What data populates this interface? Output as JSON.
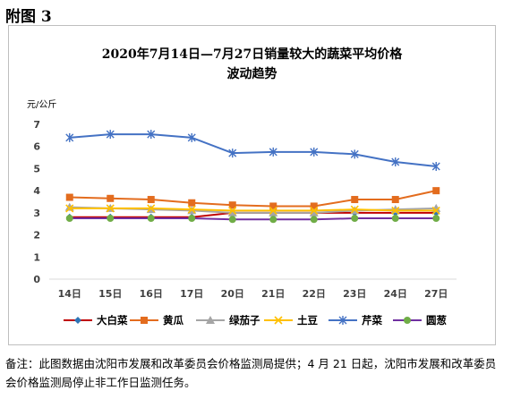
{
  "heading": "附图 3",
  "note": "备注：此图数据由沈阳市发展和改革委员会价格监测局提供；4 月 21 日起，沈阳市发展和改革委员会价格监测局停止非工作日监测任务。",
  "colors": {
    "大白菜": "#2e75b6",
    "黄瓜": "#e36c1e",
    "绿茄子": "#a5a5a5",
    "土豆": "#ffc000",
    "芹菜": "#4472c4",
    "圆葱": "#70ad47",
    "大白菜_line": "#c00000",
    "圆葱_line": "#7030a0"
  },
  "chart_data": {
    "type": "line",
    "title": "2020年7月14日—7月27日销量较大的蔬菜平均价格",
    "subtitle": "波动趋势",
    "ylabel": "元/公斤",
    "xlabel": "",
    "categories": [
      "14日",
      "15日",
      "16日",
      "17日",
      "20日",
      "21日",
      "22日",
      "23日",
      "24日",
      "27日"
    ],
    "yticks": [
      "0",
      "1",
      "2",
      "3",
      "4",
      "5",
      "6",
      "7"
    ],
    "ylim": [
      0,
      7
    ],
    "grid": false,
    "legend": "bottom",
    "series": [
      {
        "name": "大白菜",
        "marker": "diamond",
        "values": [
          2.8,
          2.8,
          2.8,
          2.8,
          3.0,
          3.0,
          3.0,
          3.0,
          3.0,
          3.0
        ]
      },
      {
        "name": "黄瓜",
        "marker": "square",
        "values": [
          3.7,
          3.65,
          3.6,
          3.45,
          3.35,
          3.3,
          3.3,
          3.6,
          3.6,
          4.0
        ]
      },
      {
        "name": "绿茄子",
        "marker": "triangle",
        "values": [
          3.25,
          3.2,
          3.15,
          3.1,
          3.0,
          3.0,
          3.0,
          3.1,
          3.15,
          3.2
        ]
      },
      {
        "name": "土豆",
        "marker": "x",
        "values": [
          3.2,
          3.2,
          3.2,
          3.15,
          3.1,
          3.1,
          3.1,
          3.15,
          3.1,
          3.1
        ]
      },
      {
        "name": "芹菜",
        "marker": "star",
        "values": [
          6.4,
          6.55,
          6.55,
          6.4,
          5.7,
          5.75,
          5.75,
          5.65,
          5.3,
          5.1
        ]
      },
      {
        "name": "圆葱",
        "marker": "circle",
        "values": [
          2.75,
          2.75,
          2.75,
          2.75,
          2.7,
          2.7,
          2.7,
          2.75,
          2.75,
          2.75
        ]
      }
    ]
  }
}
